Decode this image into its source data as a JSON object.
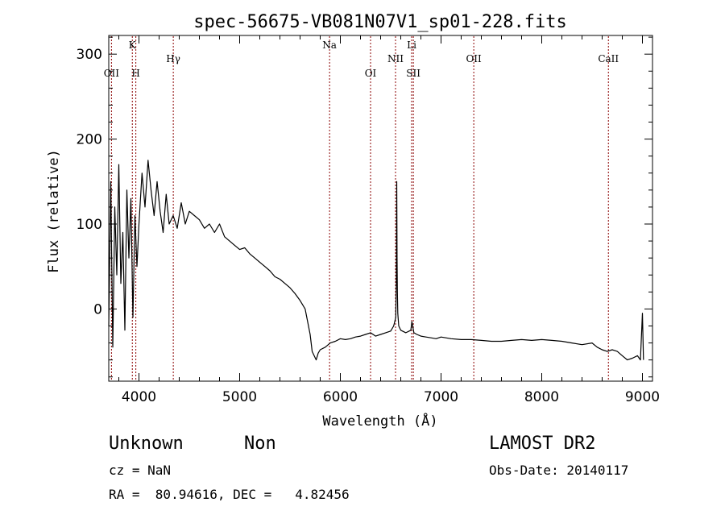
{
  "info": {
    "class_label": "Unknown",
    "subclass_label": "Non",
    "survey": "LAMOST DR2",
    "cz": "cz = NaN",
    "obs_date": "Obs-Date: 20140117",
    "coords": "RA =  80.94616, DEC =   4.82456"
  },
  "colors": {
    "spectrum": "#000000",
    "line_markers": "#8b0000",
    "axes": "#000000"
  },
  "chart_data": {
    "type": "line",
    "title": "spec-56675-VB081N07V1_sp01-228.fits",
    "xlabel": "Wavelength (Å)",
    "ylabel": "Flux (relative)",
    "xlim": [
      3700,
      9100
    ],
    "ylim": [
      -85,
      322
    ],
    "xticks": [
      4000,
      5000,
      6000,
      7000,
      8000,
      9000
    ],
    "yticks": [
      0,
      100,
      200,
      300
    ],
    "grid": false,
    "lines": [
      {
        "label": "OII",
        "wavelength": 3727,
        "row": 2
      },
      {
        "label": "K",
        "wavelength": 3934,
        "row": 0
      },
      {
        "label": "H",
        "wavelength": 3969,
        "row": 2
      },
      {
        "label": "Hγ",
        "wavelength": 4341,
        "row": 1
      },
      {
        "label": "Na",
        "wavelength": 5893,
        "row": 0
      },
      {
        "label": "OI",
        "wavelength": 6300,
        "row": 2
      },
      {
        "label": "NII",
        "wavelength": 6548,
        "row": 1
      },
      {
        "label": "Li",
        "wavelength": 6708,
        "row": 0
      },
      {
        "label": "SII",
        "wavelength": 6725,
        "row": 2
      },
      {
        "label": "OII",
        "wavelength": 7325,
        "row": 1
      },
      {
        "label": "CaII",
        "wavelength": 8662,
        "row": 1
      }
    ],
    "series": [
      {
        "x": [
          3700,
          3720,
          3740,
          3760,
          3780,
          3800,
          3820,
          3840,
          3860,
          3880,
          3900,
          3920,
          3940,
          3960,
          3980,
          4000,
          4030,
          4060,
          4090,
          4120,
          4150,
          4180,
          4210,
          4240,
          4270,
          4300,
          4340,
          4380,
          4420,
          4460,
          4500,
          4550,
          4600,
          4650,
          4700,
          4750,
          4800,
          4850,
          4900,
          4950,
          5000,
          5050,
          5100,
          5150,
          5200,
          5250,
          5300,
          5350,
          5400,
          5450,
          5500,
          5550,
          5600,
          5650,
          5700,
          5720,
          5740,
          5760,
          5780,
          5800,
          5850,
          5900,
          5950,
          6000,
          6050,
          6100,
          6150,
          6200,
          6250,
          6300,
          6350,
          6400,
          6450,
          6500,
          6530,
          6550,
          6556,
          6560,
          6563,
          6566,
          6570,
          6580,
          6600,
          6650,
          6700,
          6710,
          6730,
          6760,
          6800,
          6850,
          6900,
          6950,
          7000,
          7100,
          7200,
          7300,
          7400,
          7500,
          7600,
          7700,
          7800,
          7900,
          8000,
          8100,
          8200,
          8300,
          8400,
          8500,
          8550,
          8600,
          8650,
          8700,
          8750,
          8800,
          8850,
          8900,
          8950,
          8980,
          9000,
          9010
        ],
        "y": [
          -20,
          150,
          -45,
          120,
          40,
          170,
          30,
          90,
          -25,
          140,
          60,
          130,
          -10,
          110,
          50,
          100,
          160,
          120,
          175,
          140,
          110,
          150,
          115,
          90,
          135,
          100,
          110,
          95,
          125,
          100,
          115,
          110,
          105,
          95,
          100,
          90,
          100,
          85,
          80,
          75,
          70,
          72,
          65,
          60,
          55,
          50,
          45,
          38,
          35,
          30,
          25,
          18,
          10,
          0,
          -30,
          -50,
          -55,
          -60,
          -52,
          -48,
          -45,
          -40,
          -38,
          -35,
          -36,
          -35,
          -33,
          -32,
          -30,
          -28,
          -32,
          -30,
          -28,
          -26,
          -20,
          -10,
          30,
          150,
          60,
          20,
          -5,
          -20,
          -25,
          -28,
          -25,
          -15,
          -28,
          -30,
          -32,
          -33,
          -34,
          -35,
          -33,
          -35,
          -36,
          -36,
          -37,
          -38,
          -38,
          -37,
          -36,
          -37,
          -36,
          -37,
          -38,
          -40,
          -42,
          -40,
          -45,
          -48,
          -50,
          -48,
          -50,
          -55,
          -60,
          -58,
          -55,
          -60,
          -5,
          -60
        ]
      }
    ]
  }
}
